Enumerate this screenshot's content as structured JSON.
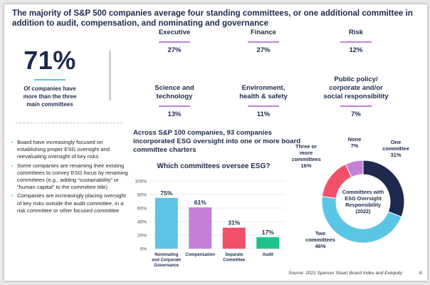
{
  "title": "The majority of S&P 500 companies average four standing committees, or one additional committee in addition to audit, compensation, and nominating and governance",
  "headline_stat": {
    "value": "71%",
    "caption_lines": [
      "Of companies have",
      "more than the three",
      "main committees"
    ]
  },
  "committee_stats": [
    {
      "label_lines": [
        "Executive"
      ],
      "value": "27%"
    },
    {
      "label_lines": [
        "Finance"
      ],
      "value": "27%"
    },
    {
      "label_lines": [
        "Risk"
      ],
      "value": "12%"
    },
    {
      "label_lines": [
        "Science and",
        "technology"
      ],
      "value": "13%"
    },
    {
      "label_lines": [
        "Environment,",
        "health & safety"
      ],
      "value": "11%"
    },
    {
      "label_lines": [
        "Public policy/",
        "corporate and/or",
        "social responsibility"
      ],
      "value": "7%"
    }
  ],
  "bullets": [
    "Board have increasingly focused on establishing proper ESG oversight and reevaluating oversight of key risks",
    "Some companies are renaming their existing committees to convey ESG focus by renaming committees (e.g., adding “sustainability” or “human capital” to the committee title)",
    "Companies are increasingly placing oversight of key risks outside the audit committee, in a risk committee or other focused committee"
  ],
  "subheading": "Across S&P 100 companies, 93 companies incorporated ESG oversight into one or more board committee charters",
  "source": "Source:  2021 Spencer Stuart Board Index and Exequity",
  "page_number": "8",
  "colors": {
    "navy": "#1d2a4d",
    "blue": "#5bc5e6",
    "purple": "#c57fd6",
    "red": "#f1506a",
    "green": "#1fc38a"
  },
  "chart_data": [
    {
      "type": "bar",
      "title": "Which committees oversee ESG?",
      "categories": [
        [
          "Nominating",
          "and Corporate",
          "Governance"
        ],
        [
          "Compensation"
        ],
        [
          "Separate",
          "Committee"
        ],
        [
          "Audit"
        ]
      ],
      "values": [
        75,
        61,
        31,
        17
      ],
      "data_labels": [
        "75%",
        "61%",
        "31%",
        "17%"
      ],
      "bar_colors": [
        "#5bc5e6",
        "#c57fd6",
        "#f1506a",
        "#1fc38a"
      ],
      "ylim": [
        0,
        100
      ],
      "yticks": [
        0,
        20,
        40,
        60,
        80,
        100
      ],
      "ytick_labels": [
        "0%",
        "20%",
        "40%",
        "60%",
        "80%",
        "100%"
      ],
      "grid": true,
      "xlabel": "",
      "ylabel": ""
    },
    {
      "type": "pie",
      "donut": true,
      "center_label": [
        "Committees with",
        "ESG Oversight",
        "Responsibility",
        "(2022)"
      ],
      "slices": [
        {
          "label": [
            "One",
            "committee"
          ],
          "value": 31,
          "value_label": "31%",
          "color": "#1d2a4d"
        },
        {
          "label": [
            "Two",
            "committees"
          ],
          "value": 46,
          "value_label": "46%",
          "color": "#5bc5e6"
        },
        {
          "label": [
            "Three or",
            "more",
            "committees"
          ],
          "value": 16,
          "value_label": "16%",
          "color": "#f1506a"
        },
        {
          "label": [
            "None"
          ],
          "value": 7,
          "value_label": "7%",
          "color": "#c57fd6"
        }
      ]
    }
  ]
}
